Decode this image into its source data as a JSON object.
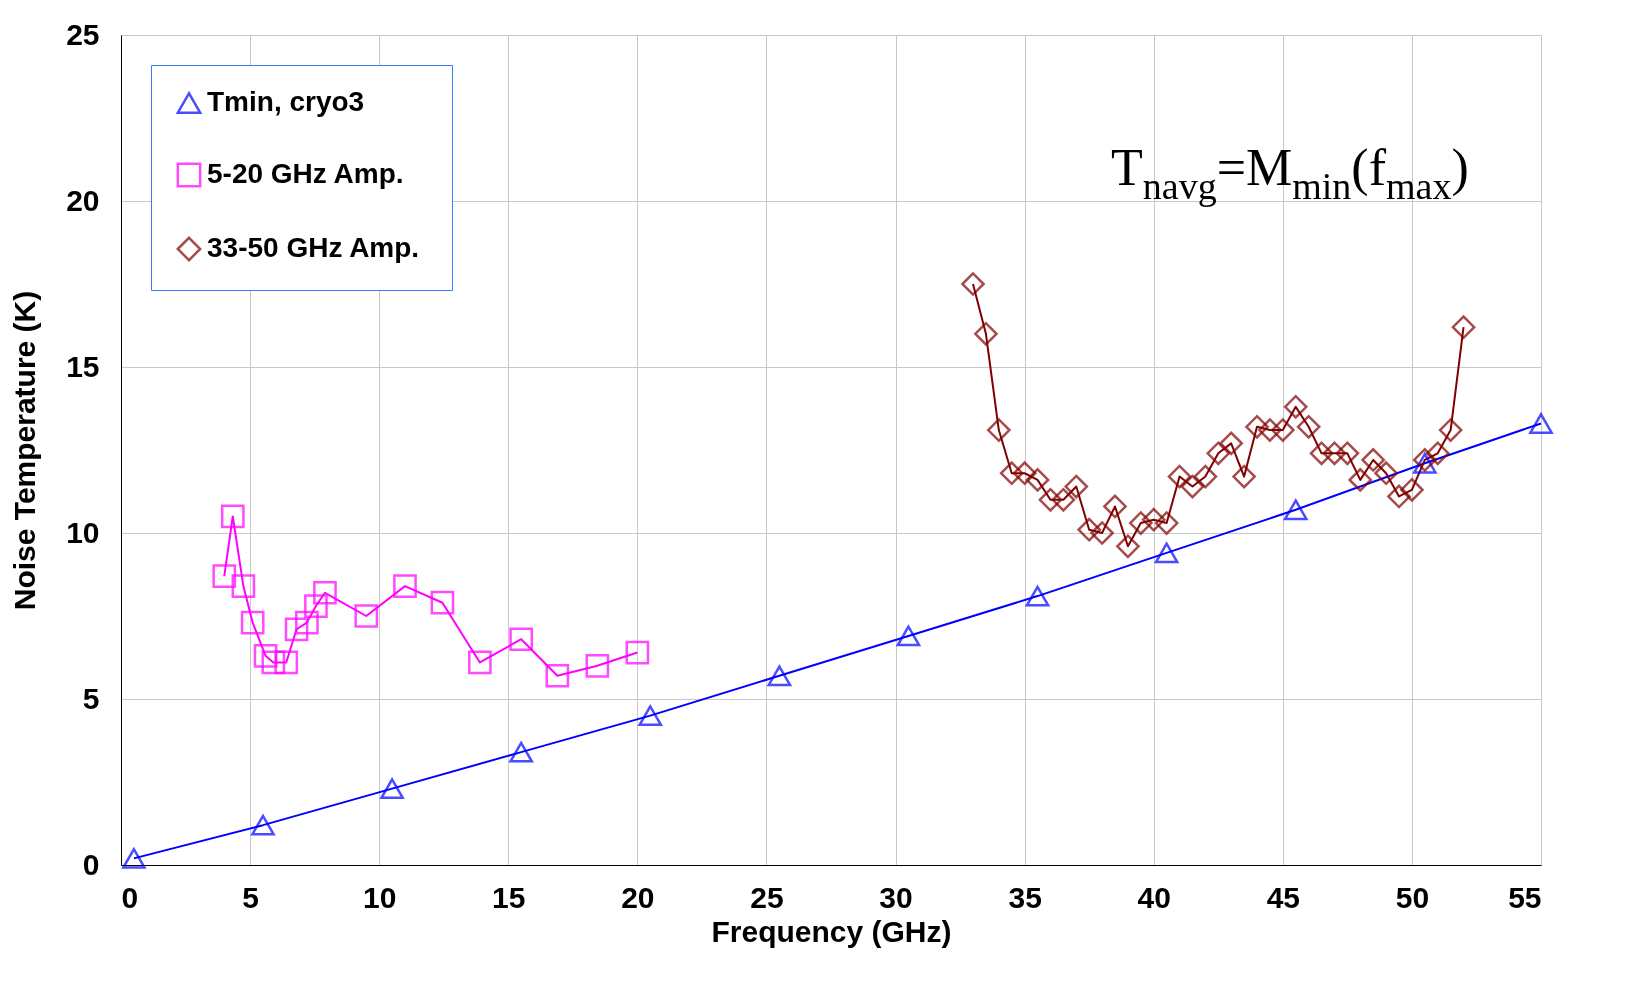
{
  "chart_data": {
    "type": "line",
    "xlabel": "Frequency (GHz)",
    "ylabel": "Noise Temperature (K)",
    "annotations": [
      "T$_{navg}$=M$_{min}$(f$_{max}$)"
    ],
    "xlim": [
      0,
      55
    ],
    "xticks": [
      0,
      5,
      10,
      15,
      20,
      25,
      30,
      35,
      40,
      45,
      50,
      55
    ],
    "ylim": [
      0,
      25
    ],
    "yticks": [
      0,
      5,
      10,
      15,
      20,
      25
    ],
    "grid": true,
    "legend": "top left",
    "line_style": "solid",
    "series": [
      {
        "name": "Tmin, cryo3",
        "color": "#0000ff",
        "marker": "triangle",
        "x": [
          0.5,
          5.5,
          10.5,
          15.5,
          20.5,
          25.5,
          30.5,
          35.5,
          40.5,
          45.5,
          50.5,
          55
        ],
        "values": [
          0.2,
          1.2,
          2.3,
          3.4,
          4.5,
          5.7,
          6.9,
          8.1,
          9.4,
          10.7,
          12.1,
          13.3
        ]
      },
      {
        "name": "5-20 GHz Amp.",
        "color": "#ff00ff",
        "marker": "square",
        "x": [
          4.0,
          4.33,
          4.74,
          5.1,
          5.6,
          5.9,
          6.4,
          6.8,
          7.2,
          7.55,
          7.9,
          9.5,
          11.0,
          12.45,
          13.9,
          15.5,
          16.9,
          18.45,
          20.0
        ],
        "values": [
          8.7,
          10.5,
          8.4,
          7.3,
          6.3,
          6.1,
          6.1,
          7.1,
          7.3,
          7.8,
          8.2,
          7.5,
          8.4,
          7.9,
          6.1,
          6.8,
          5.7,
          6.0,
          6.4
        ]
      },
      {
        "name": "33-50  GHz Amp.",
        "color": "#800000",
        "marker": "diamond",
        "x": [
          33.0,
          33.5,
          34.0,
          34.5,
          35.0,
          35.5,
          36.0,
          36.5,
          37.0,
          37.5,
          38.0,
          38.5,
          39.0,
          39.5,
          40.0,
          40.5,
          41.0,
          41.5,
          42.0,
          42.5,
          43.0,
          43.5,
          44.0,
          44.5,
          45.0,
          45.5,
          46.0,
          46.5,
          47.0,
          47.5,
          48.0,
          48.5,
          49.0,
          49.5,
          50.0,
          50.5,
          51.0,
          51.5,
          52.0
        ],
        "values": [
          17.5,
          16.0,
          13.1,
          11.8,
          11.8,
          11.6,
          11.0,
          11.0,
          11.4,
          10.1,
          10.0,
          10.8,
          9.6,
          10.3,
          10.4,
          10.3,
          11.7,
          11.4,
          11.7,
          12.4,
          12.7,
          11.7,
          13.2,
          13.1,
          13.1,
          13.8,
          13.2,
          12.4,
          12.4,
          12.4,
          11.6,
          12.2,
          11.8,
          11.1,
          11.3,
          12.2,
          12.4,
          13.1,
          16.2
        ]
      }
    ]
  }
}
